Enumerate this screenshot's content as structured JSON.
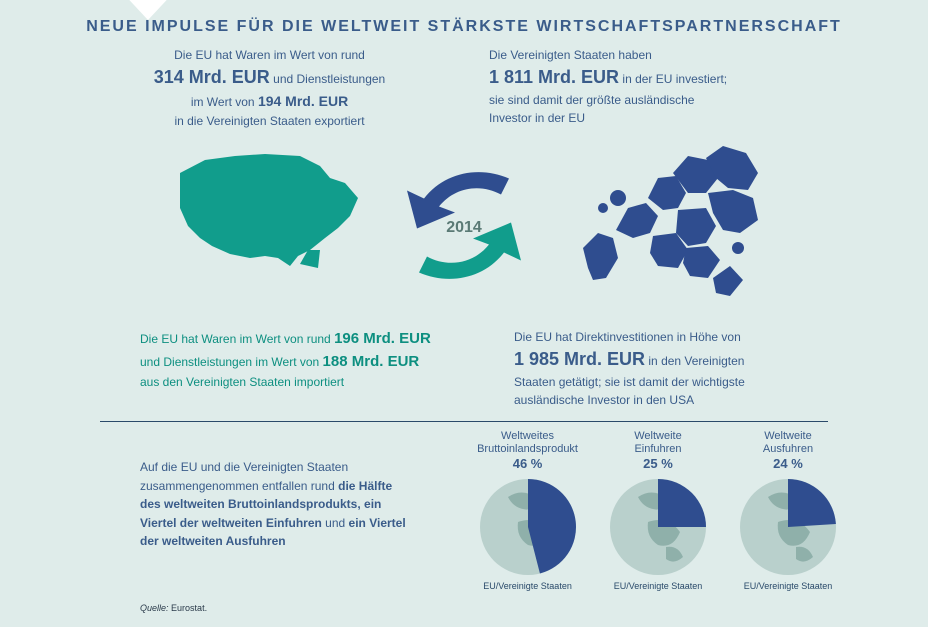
{
  "title": "NEUE IMPULSE FÜR DIE WELTWEIT STÄRKSTE WIRTSCHAFTSPARTNERSCHAFT",
  "colors": {
    "bg": "#dfecea",
    "navy": "#3a5c8a",
    "teal": "#0d8f80",
    "teal_fill": "#119d8c",
    "navy_fill": "#2f4d8f",
    "globe_light": "#b9d0cc",
    "globe_land": "#8fb0aa"
  },
  "year": "2014",
  "top_left": {
    "l1": "Die EU hat Waren im Wert von rund",
    "big": "314 Mrd. EUR",
    "mid_a": " und Dienstleistungen",
    "l2": "im Wert von ",
    "mid_b": "194 Mrd. EUR",
    "l3": "in die Vereinigten Staaten exportiert"
  },
  "top_right": {
    "l1": "Die Vereinigten Staaten haben",
    "big": "1 811 Mrd. EUR",
    "after": " in der EU investiert;",
    "l2": "sie sind damit der größte ausländische",
    "l3": "Investor in der EU"
  },
  "mid_left": {
    "l1a": "Die EU hat Waren im Wert von rund ",
    "b1": "196 Mrd. EUR",
    "l2a": "und Dienstleistungen im Wert von ",
    "b2": "188 Mrd. EUR",
    "l3": "aus den Vereinigten Staaten importiert"
  },
  "mid_right": {
    "l1": "Die EU hat Direktinvestitionen in Höhe von",
    "big": "1 985 Mrd. EUR",
    "after": " in den Vereinigten",
    "l2": "Staaten getätigt; sie ist damit der wichtigste",
    "l3": "ausländische Investor in den USA"
  },
  "bottom_text": {
    "p1": "Auf die EU und die Vereinigten Staaten zusammengenommen entfallen rund ",
    "b1": "die Hälfte des weltweiten Bruttoinlandsprodukts, ein Viertel der weltweiten Einfuhren",
    "mid": " und ",
    "b2": "ein Viertel der weltweiten Ausfuhren"
  },
  "globes": [
    {
      "title_l1": "Weltweites",
      "title_l2": "Bruttoinlandsprodukt",
      "pct": 46,
      "pct_label": "46 %",
      "caption": "EU/Vereinigte Staaten"
    },
    {
      "title_l1": "Weltweite",
      "title_l2": "Einfuhren",
      "pct": 25,
      "pct_label": "25 %",
      "caption": "EU/Vereinigte Staaten"
    },
    {
      "title_l1": "Weltweite",
      "title_l2": "Ausfuhren",
      "pct": 24,
      "pct_label": "24 %",
      "caption": "EU/Vereinigte Staaten"
    }
  ],
  "source_label": "Quelle:",
  "source_value": " Eurostat."
}
